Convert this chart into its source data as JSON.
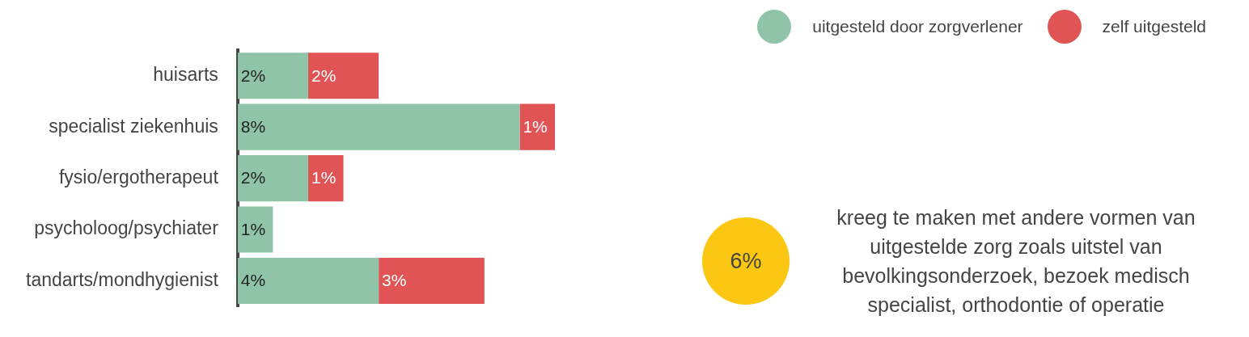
{
  "chart_data": [
    {
      "type": "bar",
      "orientation": "horizontal",
      "stacked": true,
      "categories": [
        "huisarts",
        "specialist ziekenhuis",
        "fysio/ergotherapeut",
        "psycholoog/psychiater",
        "tandarts/mondhygienist"
      ],
      "series": [
        {
          "name": "uitgesteld door zorgverlener",
          "color": "#8fc4a8",
          "values": [
            2,
            8,
            2,
            1,
            4
          ],
          "value_labels": [
            "2%",
            "8%",
            "2%",
            "1%",
            "4%"
          ]
        },
        {
          "name": "zelf uitgesteld",
          "color": "#e05455",
          "values": [
            2,
            1,
            1,
            null,
            3
          ],
          "value_labels": [
            "2%",
            "1%",
            "1%",
            null,
            "3%"
          ]
        }
      ],
      "legend": "top right",
      "tick_labels": "y"
    },
    {
      "type": "other",
      "annotations": [
        "6%",
        "kreeg te maken met andere vormen van uitgestelde zorg zoals uitstel van bevolkingsonderzoek, bezoek medisch specialist, orthodontie of operatie"
      ]
    }
  ]
}
